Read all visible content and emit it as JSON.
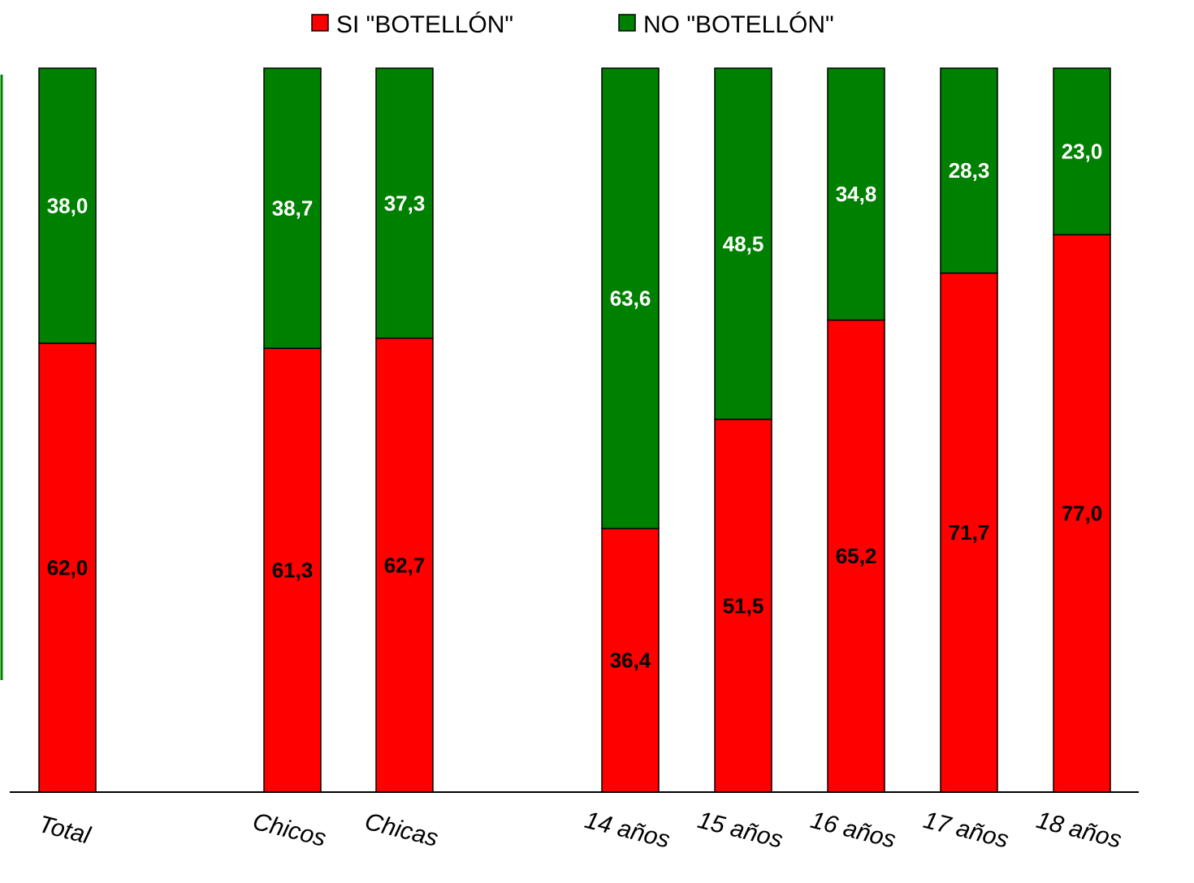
{
  "chart_data": {
    "type": "bar",
    "stacked": true,
    "categories": [
      "Total",
      "Chicos",
      "Chicas",
      "14 años",
      "15 años",
      "16 años",
      "17 años",
      "18 años"
    ],
    "series": [
      {
        "name": "SI \"BOTELLÓN\"",
        "color": "#ff0000",
        "values": [
          62.0,
          61.3,
          62.7,
          36.4,
          51.5,
          65.2,
          71.7,
          77.0
        ]
      },
      {
        "name": "NO \"BOTELLÓN\"",
        "color": "#008000",
        "values": [
          38.0,
          38.7,
          37.3,
          63.6,
          48.5,
          34.8,
          28.3,
          23.0
        ]
      }
    ],
    "labels": {
      "si": [
        "62,0",
        "61,3",
        "62,7",
        "36,4",
        "51,5",
        "65,2",
        "71,7",
        "77,0"
      ],
      "no": [
        "38,0",
        "38,7",
        "37,3",
        "63,6",
        "48,5",
        "34,8",
        "28,3",
        "23,0"
      ]
    },
    "ylim": [
      0,
      100
    ],
    "legend_position": "top-center",
    "grid": false
  }
}
